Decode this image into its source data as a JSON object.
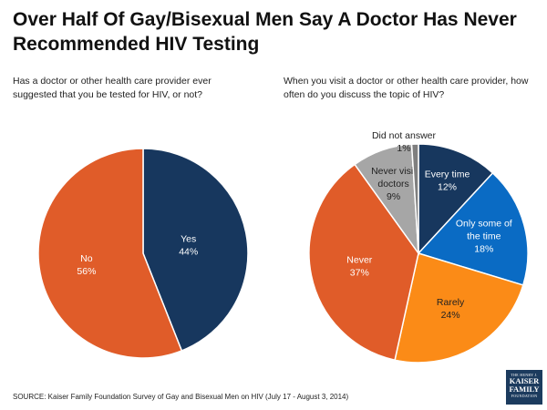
{
  "title": "Over Half Of Gay/Bisexual Men Say A Doctor Has Never Recommended HIV Testing",
  "source": "SOURCE: Kaiser Family Foundation Survey of Gay and Bisexual Men on HIV (July 17 - August 3, 2014)",
  "logo": {
    "line1": "THE HENRY J.",
    "line2a": "KAISER",
    "line2b": "FAMILY",
    "line3": "FOUNDATION"
  },
  "chart_data": [
    {
      "type": "pie",
      "title": "Has a doctor or other health care provider ever suggested that you be tested for HIV, or not?",
      "slices": [
        {
          "label": "Yes",
          "value": 44,
          "value_label": "44%",
          "color": "#17375e",
          "label_color": "#ffffff"
        },
        {
          "label": "No",
          "value": 56,
          "value_label": "56%",
          "color": "#e05c29",
          "label_color": "#ffffff"
        }
      ]
    },
    {
      "type": "pie",
      "title": "When you visit a doctor or other health care provider, how often do you discuss the topic of HIV?",
      "slices": [
        {
          "label": "Every time",
          "value": 12,
          "value_label": "12%",
          "color": "#17375e",
          "label_color": "#ffffff"
        },
        {
          "label": "Only some of the time",
          "value": 18,
          "value_label": "18%",
          "color": "#0a6bc4",
          "label_color": "#ffffff"
        },
        {
          "label": "Rarely",
          "value": 24,
          "value_label": "24%",
          "color": "#fb8b17",
          "label_color": "#222222"
        },
        {
          "label": "Never",
          "value": 37,
          "value_label": "37%",
          "color": "#e05c29",
          "label_color": "#ffffff"
        },
        {
          "label": "Never visit doctors",
          "value": 9,
          "value_label": "9%",
          "color": "#a6a6a6",
          "label_color": "#222222"
        },
        {
          "label": "Did not answer",
          "value": 1,
          "value_label": "1%",
          "color": "#7f7f7f",
          "label_color": "#222222"
        }
      ]
    }
  ]
}
